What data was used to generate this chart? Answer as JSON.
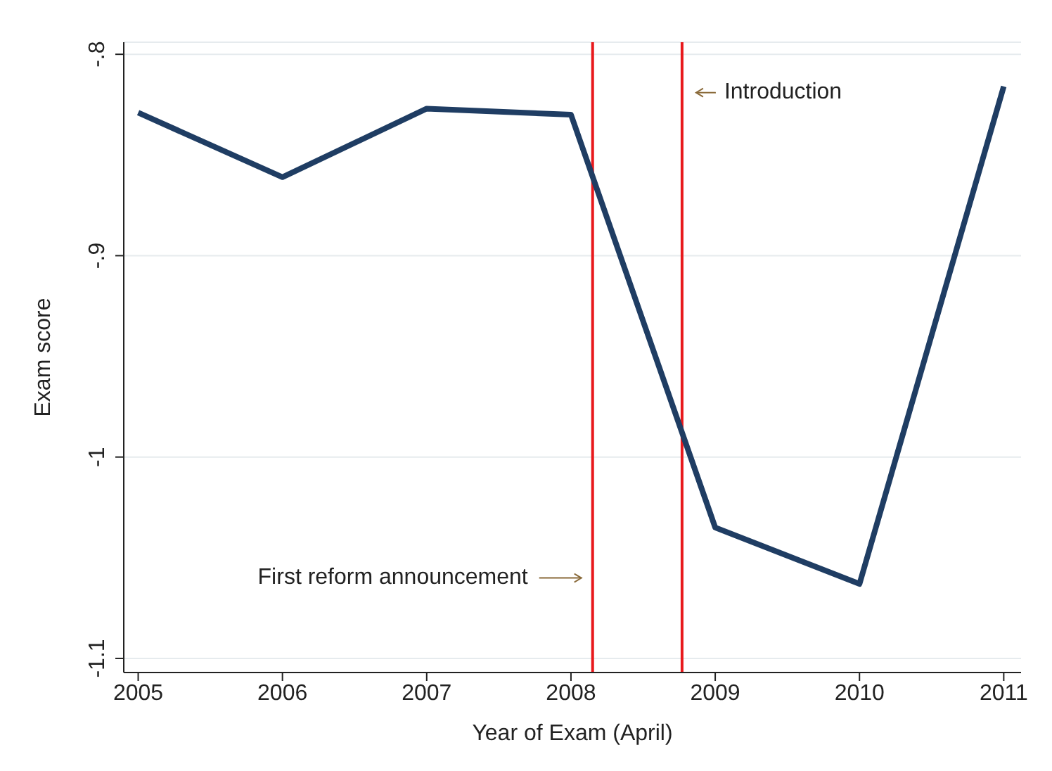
{
  "chart_data": {
    "type": "line",
    "xlabel": "Year of Exam (April)",
    "ylabel": "Exam score",
    "x": [
      2005,
      2006,
      2007,
      2008,
      2009,
      2010,
      2011
    ],
    "series": [
      {
        "color": "#1f3d63",
        "values": [
          -0.829,
          -0.861,
          -0.827,
          -0.83,
          -1.035,
          -1.063,
          -0.816
        ]
      }
    ],
    "xlim": [
      2004.9,
      2011.12
    ],
    "xticks": [
      2005,
      2006,
      2007,
      2008,
      2009,
      2010,
      2011
    ],
    "ylim": [
      -1.107,
      -0.794
    ],
    "yticks": [
      {
        "value": -0.8,
        "label": "-.8"
      },
      {
        "value": -0.9,
        "label": "-.9"
      },
      {
        "value": -1,
        "label": "-1"
      },
      {
        "value": -1.1,
        "label": "-1.1"
      }
    ],
    "grid": "y",
    "marker": "none",
    "line_style": "solid",
    "ref_lines": [
      {
        "axis": "x",
        "value": 2008.15,
        "label": "First reform announcement",
        "color": "#e8191c"
      },
      {
        "axis": "x",
        "value": 2008.77,
        "label": "Introduction",
        "color": "#e8191c"
      }
    ]
  }
}
